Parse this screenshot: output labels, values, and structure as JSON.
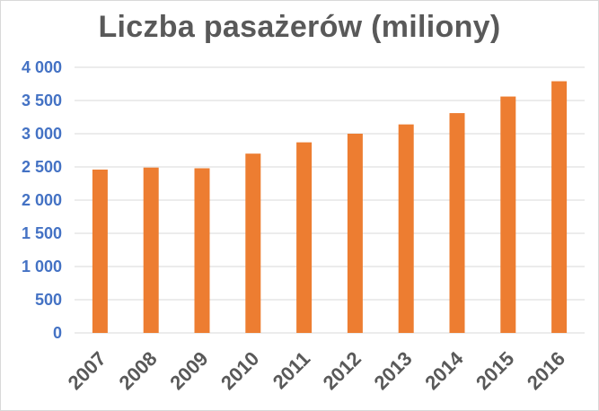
{
  "chart_data": {
    "type": "bar",
    "title": "Liczba pasażerów (miliony)",
    "xlabel": "",
    "ylabel": "",
    "categories": [
      "2007",
      "2008",
      "2009",
      "2010",
      "2011",
      "2012",
      "2013",
      "2014",
      "2015",
      "2016"
    ],
    "values": [
      2460,
      2490,
      2480,
      2700,
      2870,
      3000,
      3140,
      3310,
      3560,
      3790
    ],
    "ylim": [
      0,
      4000
    ],
    "yticks": [
      0,
      500,
      1000,
      1500,
      2000,
      2500,
      3000,
      3500,
      4000
    ],
    "ytick_labels": [
      "0",
      "500",
      "1 000",
      "1 500",
      "2 000",
      "2 500",
      "3 000",
      "3 500",
      "4 000"
    ],
    "grid": true,
    "legend": "none",
    "colors": {
      "bar": "#ed7d31",
      "title": "#595959",
      "ytick": "#4472c4",
      "xtick": "#595959",
      "grid": "#d9d9d9"
    }
  }
}
